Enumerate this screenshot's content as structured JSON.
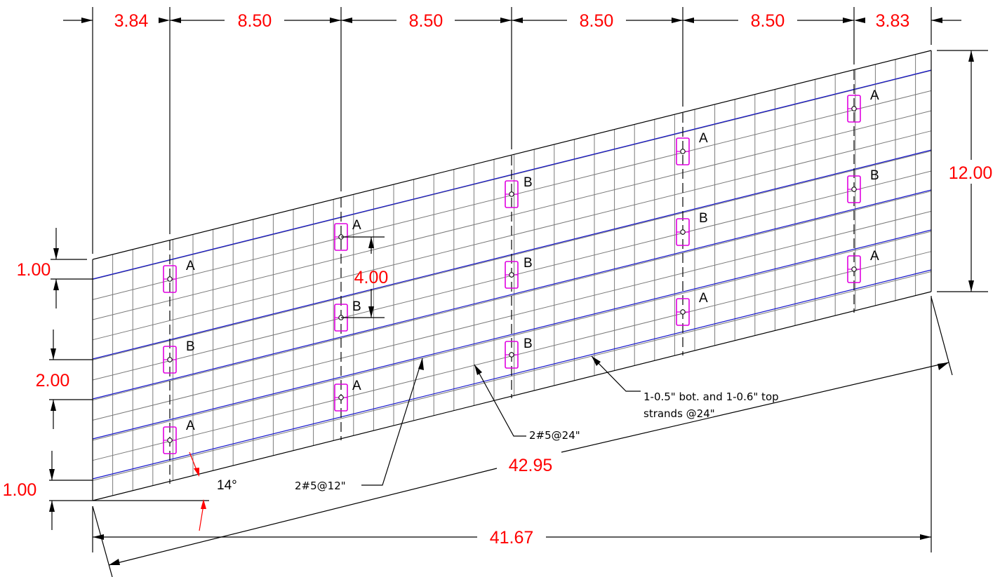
{
  "top_dimensions": [
    "3.84",
    "8.50",
    "8.50",
    "8.50",
    "8.50",
    "3.83"
  ],
  "left_dimensions": [
    "1.00",
    "2.00",
    "1.00"
  ],
  "right_dimension": "12.00",
  "inner_dimension": "4.00",
  "skew_length": "42.95",
  "overall_length": "41.67",
  "skew_angle": "14°",
  "notes": {
    "strands_line1": "1-0.5\" bot. and 1-0.6\" top",
    "strands_line2": "strands @24\"",
    "bars_24": "2#5@24\"",
    "bars_12": "2#5@12\""
  },
  "insert_labels": {
    "col1": [
      "A",
      "B",
      "A"
    ],
    "col2": [
      "A",
      "B",
      "A"
    ],
    "col3": [
      "B",
      "B",
      "B"
    ],
    "col4": [
      "A",
      "B",
      "A"
    ],
    "col5": [
      "A",
      "B",
      "A"
    ]
  },
  "colors": {
    "dimension_text": "#ff0000",
    "strand_lines": "#1515cc",
    "inserts": "#e000e0",
    "grid": "#7a7a7a"
  }
}
